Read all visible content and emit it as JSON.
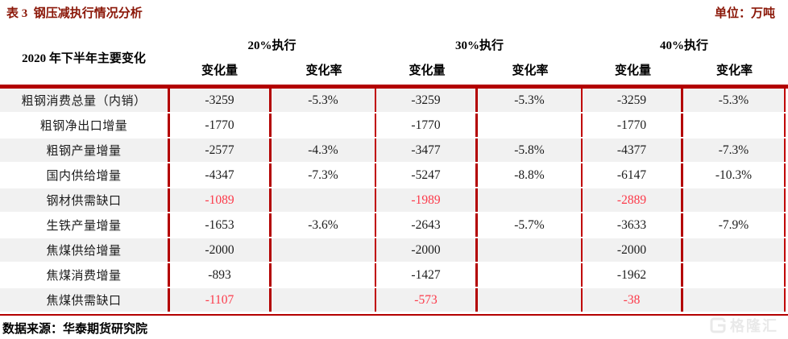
{
  "title": "表 3  钢压减执行情况分析",
  "unit": "单位：万吨",
  "table": {
    "row_header": "2020 年下半年主要变化",
    "groups": [
      {
        "label": "20%执行"
      },
      {
        "label": "30%执行"
      },
      {
        "label": "40%执行"
      }
    ],
    "subcols": {
      "amount": "变化量",
      "rate": "变化率"
    },
    "rows": [
      {
        "label": "粗钢消费总量（内销）",
        "cells": [
          "-3259",
          "-5.3%",
          "-3259",
          "-5.3%",
          "-3259",
          "-5.3%"
        ],
        "red": false
      },
      {
        "label": "粗钢净出口增量",
        "cells": [
          "-1770",
          "",
          "-1770",
          "",
          "-1770",
          ""
        ],
        "red": false
      },
      {
        "label": "粗钢产量增量",
        "cells": [
          "-2577",
          "-4.3%",
          "-3477",
          "-5.8%",
          "-4377",
          "-7.3%"
        ],
        "red": false
      },
      {
        "label": "国内供给增量",
        "cells": [
          "-4347",
          "-7.3%",
          "-5247",
          "-8.8%",
          "-6147",
          "-10.3%"
        ],
        "red": false
      },
      {
        "label": "钢材供需缺口",
        "cells": [
          "-1089",
          "",
          "-1989",
          "",
          "-2889",
          ""
        ],
        "red": true
      },
      {
        "label": "生铁产量增量",
        "cells": [
          "-1653",
          "-3.6%",
          "-2643",
          "-5.7%",
          "-3633",
          "-7.9%"
        ],
        "red": false
      },
      {
        "label": "焦煤供给增量",
        "cells": [
          "-2000",
          "",
          "-2000",
          "",
          "-2000",
          ""
        ],
        "red": false
      },
      {
        "label": "焦煤消费增量",
        "cells": [
          "-893",
          "",
          "-1427",
          "",
          "-1962",
          ""
        ],
        "red": false
      },
      {
        "label": "焦煤供需缺口",
        "cells": [
          "-1107",
          "",
          "-573",
          "",
          "-38",
          ""
        ],
        "red": true
      }
    ]
  },
  "source": "数据来源：华泰期货研究院",
  "watermark": {
    "text": "格隆汇",
    "icon": "gelonghui-g-icon"
  },
  "colors": {
    "title_red": "#8b1708",
    "grid_red": "#b30000",
    "value_red": "#fc3949",
    "zebra_gray": "#f1f1f1",
    "watermark_gray": "#e9e9e9"
  }
}
